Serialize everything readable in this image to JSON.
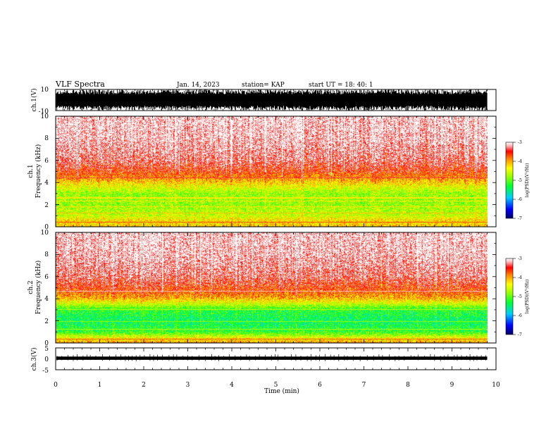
{
  "header": {
    "title": "VLF Spectra",
    "date": "Jan. 14, 2023",
    "station": "station= KAP",
    "start": "start UT =  18: 40: 1"
  },
  "chart_data": [
    {
      "type": "line",
      "ylabel": "ch.1(V)",
      "xlim": [
        0,
        10
      ],
      "ylim": [
        -10,
        10
      ],
      "yticks": [
        "10",
        "-10"
      ],
      "note": "raw waveform, dense broadband signal saturating approximately -10..10 V"
    },
    {
      "type": "heatmap",
      "ylabel": "ch.1\nFrequency (kHz)",
      "xlim": [
        0,
        10
      ],
      "ylim": [
        0,
        10
      ],
      "yticks": [
        "0",
        "2",
        "4",
        "6",
        "8",
        "10"
      ],
      "profile": [
        {
          "f": 0.0,
          "v": -4.2
        },
        {
          "f": 0.6,
          "v": -4.3
        },
        {
          "f": 1.0,
          "v": -4.6
        },
        {
          "f": 2.0,
          "v": -4.8
        },
        {
          "f": 3.0,
          "v": -4.8
        },
        {
          "f": 3.5,
          "v": -4.5
        },
        {
          "f": 4.0,
          "v": -4.2
        },
        {
          "f": 4.5,
          "v": -3.9
        },
        {
          "f": 5.0,
          "v": -3.6
        },
        {
          "f": 6.0,
          "v": -3.3
        },
        {
          "f": 8.0,
          "v": -3.1
        },
        {
          "f": 10.0,
          "v": -3.05
        }
      ],
      "lines_khz": [
        0.4,
        1.2,
        1.8,
        2.3,
        2.6,
        4.4
      ],
      "colorbar": {
        "label": "log(PSD)(V²/Hz)",
        "range": [
          -7,
          -3
        ],
        "ticks": [
          "-3",
          "-4",
          "-5",
          "-6",
          "-7"
        ]
      }
    },
    {
      "type": "heatmap",
      "ylabel": "ch.2\nFrequency (kHz)",
      "xlim": [
        0,
        10
      ],
      "ylim": [
        0,
        10
      ],
      "yticks": [
        "0",
        "2",
        "4",
        "6",
        "8",
        "10"
      ],
      "profile": [
        {
          "f": 0.0,
          "v": -4.0
        },
        {
          "f": 0.5,
          "v": -4.5
        },
        {
          "f": 1.0,
          "v": -5.2
        },
        {
          "f": 2.0,
          "v": -5.4
        },
        {
          "f": 3.0,
          "v": -5.2
        },
        {
          "f": 3.5,
          "v": -4.6
        },
        {
          "f": 4.0,
          "v": -4.1
        },
        {
          "f": 4.5,
          "v": -3.8
        },
        {
          "f": 5.0,
          "v": -3.6
        },
        {
          "f": 6.0,
          "v": -3.3
        },
        {
          "f": 8.0,
          "v": -3.1
        },
        {
          "f": 10.0,
          "v": -3.05
        }
      ],
      "lines_khz": [
        0.3,
        1.2,
        1.9,
        3.0,
        4.7
      ],
      "colorbar": {
        "label": "log(PSD)(V²/Hz)",
        "range": [
          -7,
          -3
        ],
        "ticks": [
          "-3",
          "-4",
          "-5",
          "-6",
          "-7"
        ]
      }
    },
    {
      "type": "line",
      "ylabel": "ch.3(V)",
      "xlabel": "Time (min)",
      "xlim": [
        0,
        10
      ],
      "ylim": [
        -5,
        5
      ],
      "yticks": [
        "5",
        "0",
        "-5"
      ],
      "xticks": [
        "0",
        "1",
        "2",
        "3",
        "4",
        "5",
        "6",
        "7",
        "8",
        "9",
        "10"
      ],
      "note": "narrow signal band around 0 V"
    }
  ],
  "data_end_min": 9.8,
  "colors": {
    "axis": "#000000",
    "background": "#ffffff"
  }
}
